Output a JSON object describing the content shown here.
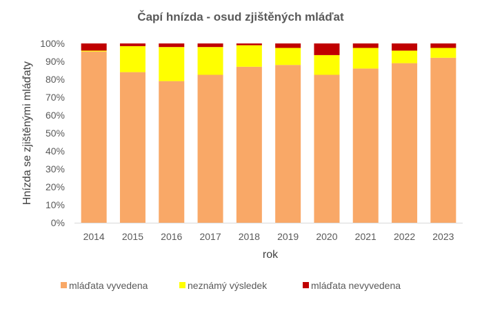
{
  "chart_data": {
    "type": "bar",
    "stacked": true,
    "title": "Čapí hnízda - osud zjištěných mláďat",
    "xlabel": "rok",
    "ylabel": "Hnízda se zjištěnými mláďaty",
    "ylim": [
      0,
      100
    ],
    "yticks": [
      "0%",
      "10%",
      "20%",
      "30%",
      "40%",
      "50%",
      "60%",
      "70%",
      "80%",
      "90%",
      "100%"
    ],
    "categories": [
      "2014",
      "2015",
      "2016",
      "2017",
      "2018",
      "2019",
      "2020",
      "2021",
      "2022",
      "2023"
    ],
    "series": [
      {
        "name": "mláďata vyvedena",
        "color": "#F9A867",
        "values": [
          95.5,
          84,
          79,
          82.5,
          87,
          88,
          82.5,
          86,
          89,
          92
        ]
      },
      {
        "name": "neznámý výsledek",
        "color": "#FFFF00",
        "values": [
          0.5,
          14.5,
          19,
          15.5,
          12,
          9.5,
          11,
          11.5,
          7,
          5.5
        ]
      },
      {
        "name": "mláďata nevyvedena",
        "color": "#C00000",
        "values": [
          4,
          1.5,
          2,
          2,
          1,
          2.5,
          6.5,
          2.5,
          4,
          2.5
        ]
      }
    ],
    "grid": false,
    "legend_position": "bottom"
  }
}
